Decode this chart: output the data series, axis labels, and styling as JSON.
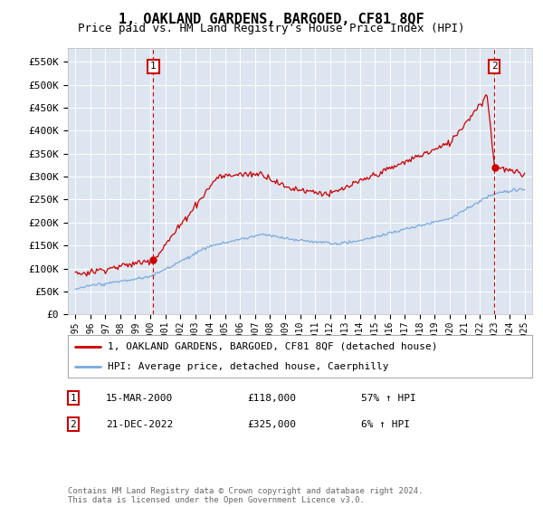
{
  "title": "1, OAKLAND GARDENS, BARGOED, CF81 8QF",
  "subtitle": "Price paid vs. HM Land Registry's House Price Index (HPI)",
  "legend_line1": "1, OAKLAND GARDENS, BARGOED, CF81 8QF (detached house)",
  "legend_line2": "HPI: Average price, detached house, Caerphilly",
  "sale1_label": "1",
  "sale1_date": "15-MAR-2000",
  "sale1_price": "£118,000",
  "sale1_hpi": "57% ↑ HPI",
  "sale1_year": 2000.21,
  "sale1_value": 118000,
  "sale2_label": "2",
  "sale2_date": "21-DEC-2022",
  "sale2_price": "£325,000",
  "sale2_hpi": "6% ↑ HPI",
  "sale2_year": 2022.97,
  "sale2_value": 325000,
  "ylabel_ticks": [
    "£0",
    "£50K",
    "£100K",
    "£150K",
    "£200K",
    "£250K",
    "£300K",
    "£350K",
    "£400K",
    "£450K",
    "£500K",
    "£550K"
  ],
  "ytick_values": [
    0,
    50000,
    100000,
    150000,
    200000,
    250000,
    300000,
    350000,
    400000,
    450000,
    500000,
    550000
  ],
  "ylim": [
    0,
    580000
  ],
  "xlim_start": 1994.5,
  "xlim_end": 2025.5,
  "plot_bg": "#dde5f0",
  "red_color": "#cc0000",
  "blue_color": "#7aaadd",
  "grid_color": "#ffffff",
  "copyright_text": "Contains HM Land Registry data © Crown copyright and database right 2024.\nThis data is licensed under the Open Government Licence v3.0.",
  "footer_color": "#666666"
}
